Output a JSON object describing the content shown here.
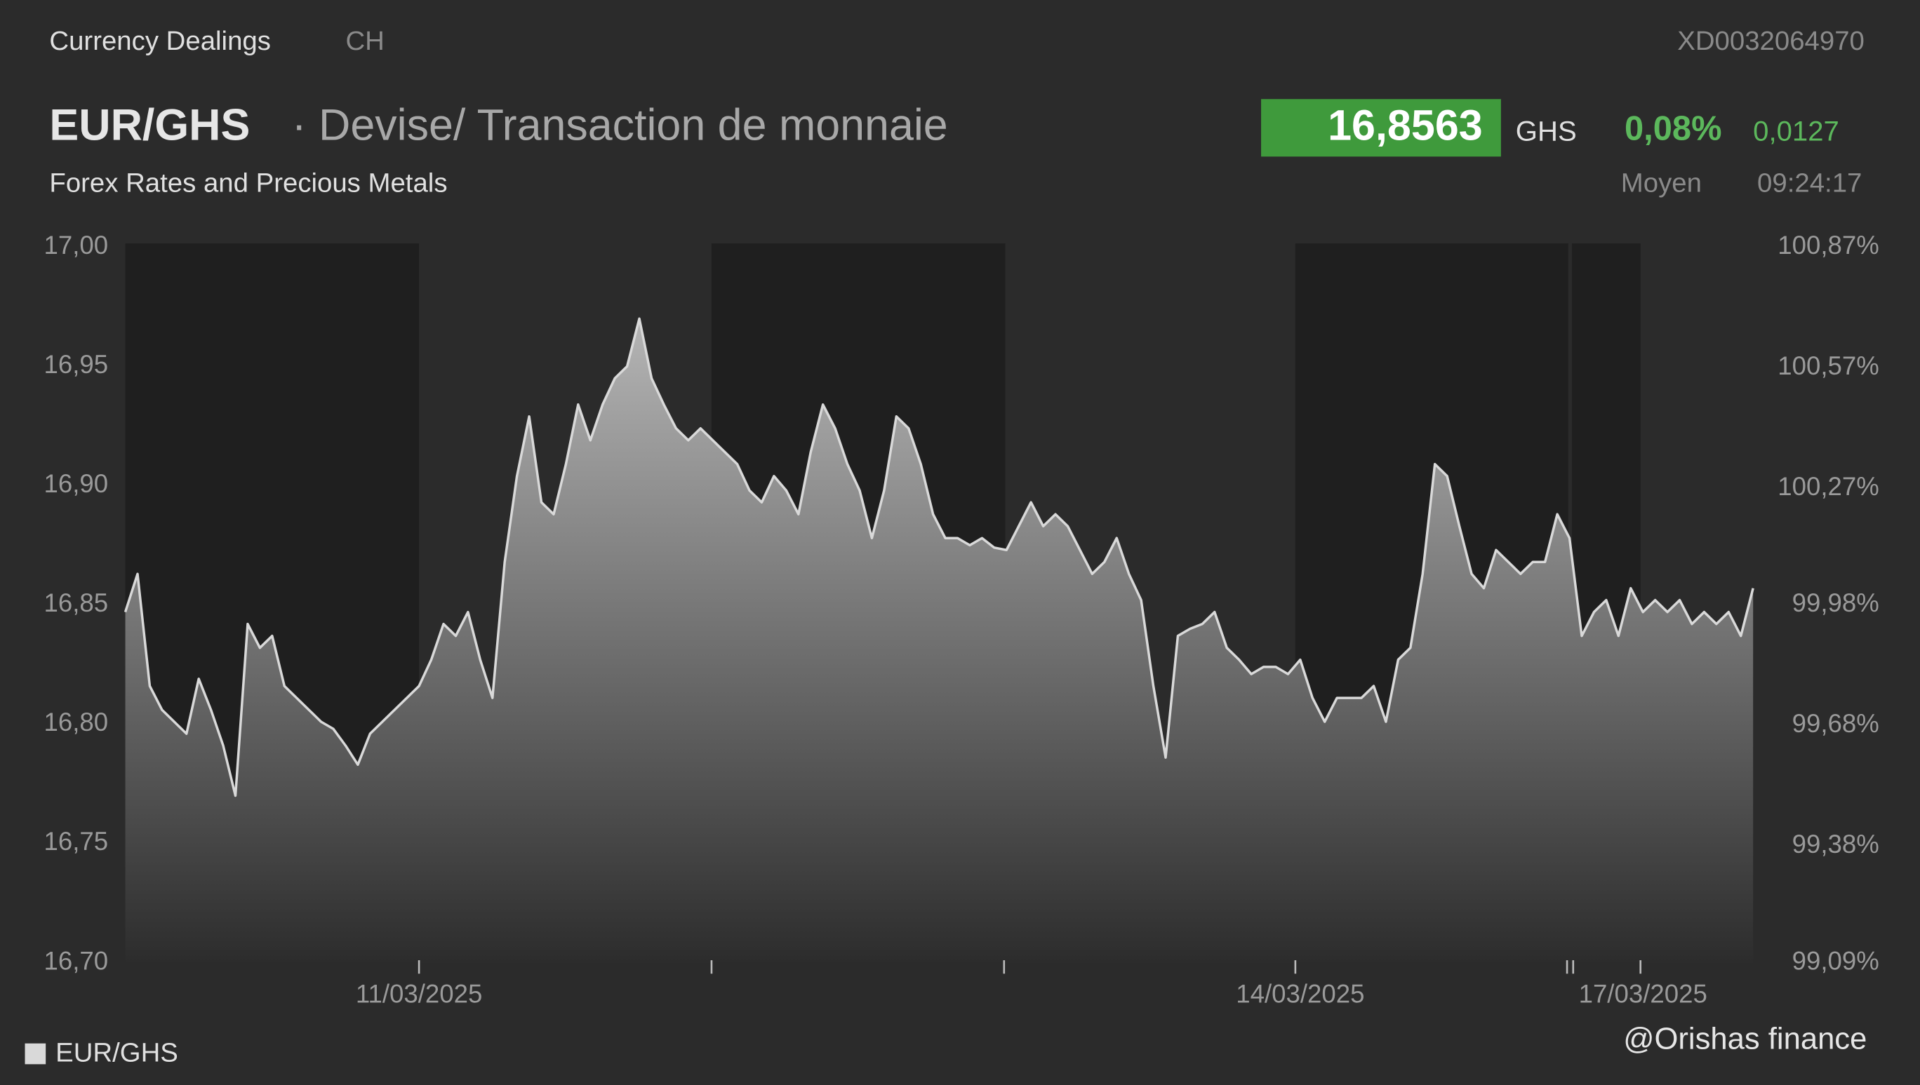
{
  "header": {
    "section": "Currency Dealings",
    "country": "CH",
    "isin": "XD0032064970",
    "pair": "EUR/GHS",
    "description": "· Devise/ Transaction de monnaie",
    "subtitle": "Forex Rates and Precious Metals",
    "price": "16,8563",
    "currency": "GHS",
    "change_pct": "0,08%",
    "change_abs": "0,0127",
    "price_type": "Moyen",
    "time": "09:24:17",
    "watermark": "@Orishas finance"
  },
  "chart_data": {
    "type": "area",
    "categories": [
      null,
      null,
      null,
      null,
      null,
      null,
      null,
      null,
      null,
      null,
      null,
      null,
      null,
      null,
      null,
      null,
      null,
      null,
      null,
      null,
      null,
      null,
      null,
      null,
      "11/03/2025",
      null,
      null,
      null,
      null,
      null,
      null,
      null,
      null,
      null,
      null,
      null,
      null,
      null,
      null,
      null,
      null,
      null,
      null,
      null,
      null,
      null,
      null,
      null,
      null,
      null,
      null,
      null,
      null,
      null,
      null,
      null,
      null,
      null,
      null,
      null,
      null,
      null,
      null,
      null,
      null,
      null,
      null,
      null,
      null,
      null,
      null,
      null,
      null,
      null,
      null,
      null,
      null,
      null,
      null,
      null,
      null,
      null,
      null,
      null,
      null,
      null,
      null,
      null,
      null,
      null,
      null,
      null,
      null,
      null,
      null,
      null,
      "14/03/2025",
      null,
      null,
      null,
      null,
      null,
      null,
      null,
      null,
      null,
      null,
      null,
      null,
      null,
      null,
      null,
      null,
      null,
      null,
      null,
      null,
      null,
      null,
      null,
      null,
      null,
      null,
      null,
      "17/03/2025",
      null,
      null,
      null,
      null,
      null,
      null,
      null,
      null,
      null
    ],
    "series": [
      {
        "name": "EUR/GHS",
        "color": "#d9d9d9",
        "values": [
          16.847,
          16.863,
          16.816,
          16.806,
          16.801,
          16.796,
          16.819,
          16.806,
          16.791,
          16.77,
          16.842,
          16.832,
          16.837,
          16.816,
          16.811,
          16.806,
          16.801,
          16.798,
          16.791,
          16.783,
          16.796,
          16.801,
          16.806,
          16.811,
          16.816,
          16.827,
          16.842,
          16.837,
          16.847,
          16.827,
          16.811,
          16.868,
          16.904,
          16.929,
          16.893,
          16.888,
          16.909,
          16.934,
          16.919,
          16.934,
          16.945,
          16.95,
          16.97,
          16.945,
          16.934,
          16.924,
          16.919,
          16.924,
          16.919,
          16.914,
          16.909,
          16.898,
          16.893,
          16.904,
          16.898,
          16.888,
          16.914,
          16.934,
          16.924,
          16.909,
          16.898,
          16.878,
          16.898,
          16.929,
          16.924,
          16.909,
          16.888,
          16.878,
          16.878,
          16.875,
          16.878,
          16.874,
          16.873,
          16.883,
          16.893,
          16.883,
          16.888,
          16.883,
          16.873,
          16.863,
          16.868,
          16.878,
          16.863,
          16.852,
          16.816,
          16.786,
          16.837,
          16.84,
          16.842,
          16.847,
          16.832,
          16.827,
          16.821,
          16.824,
          16.824,
          16.821,
          16.827,
          16.811,
          16.801,
          16.811,
          16.811,
          16.811,
          16.816,
          16.801,
          16.827,
          16.832,
          16.863,
          16.909,
          16.904,
          16.883,
          16.863,
          16.857,
          16.873,
          16.868,
          16.863,
          16.868,
          16.868,
          16.888,
          16.878,
          16.837,
          16.847,
          16.852,
          16.837,
          16.857,
          16.847,
          16.852,
          16.847,
          16.852,
          16.842,
          16.847,
          16.842,
          16.847,
          16.837,
          16.857
        ]
      }
    ],
    "ylim": [
      16.7,
      17.0
    ],
    "yticks": [
      {
        "value": 16.7,
        "label": "16,70"
      },
      {
        "value": 16.75,
        "label": "16,75"
      },
      {
        "value": 16.8,
        "label": "16,80"
      },
      {
        "value": 16.85,
        "label": "16,85"
      },
      {
        "value": 16.9,
        "label": "16,90"
      },
      {
        "value": 16.95,
        "label": "16,95"
      },
      {
        "value": 17.0,
        "label": "17,00"
      }
    ],
    "y2lim": [
      99.09,
      100.87
    ],
    "y2ticks": [
      {
        "value": 99.09,
        "label": "99,09%"
      },
      {
        "value": 99.38,
        "label": "99,38%"
      },
      {
        "value": 99.68,
        "label": "99,68%"
      },
      {
        "value": 99.98,
        "label": "99,98%"
      },
      {
        "value": 100.27,
        "label": "100,27%"
      },
      {
        "value": 100.57,
        "label": "100,57%"
      },
      {
        "value": 100.87,
        "label": "100,87%"
      }
    ]
  }
}
